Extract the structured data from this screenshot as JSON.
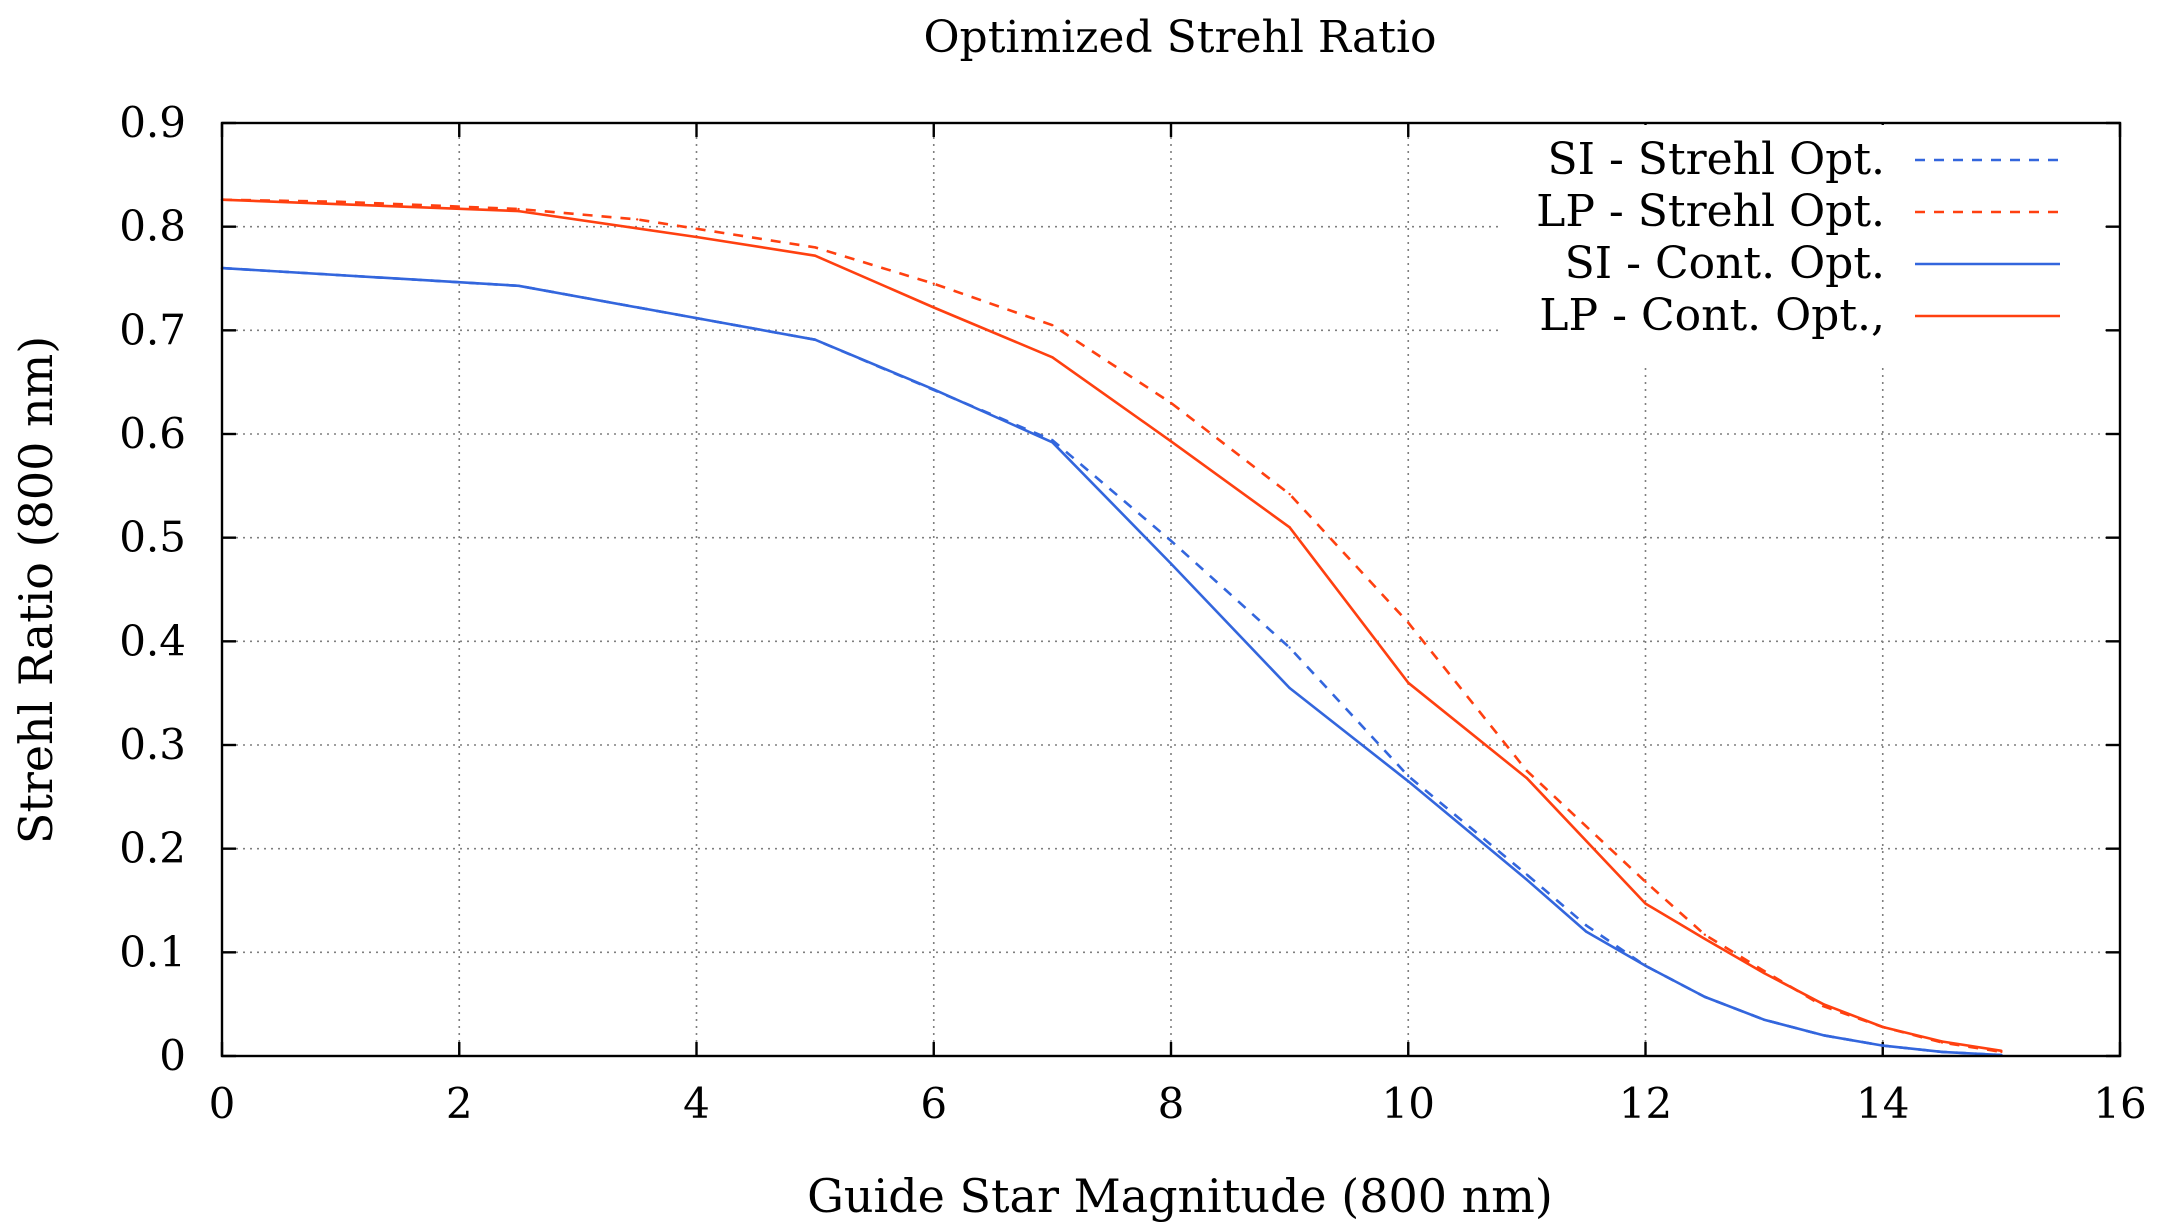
{
  "chart_data": {
    "type": "line",
    "title": "Optimized Strehl Ratio",
    "xlabel": "Guide Star Magnitude (800 nm)",
    "ylabel": "Strehl Ratio (800 nm)",
    "xlim": [
      0,
      16
    ],
    "ylim": [
      0,
      0.9
    ],
    "xticks": [
      "0",
      "2",
      "4",
      "6",
      "8",
      "10",
      "12",
      "14",
      "16"
    ],
    "yticks": [
      "0",
      "0.1",
      "0.2",
      "0.3",
      "0.4",
      "0.5",
      "0.6",
      "0.7",
      "0.8",
      "0.9"
    ],
    "grid": true,
    "legend_position": "top-right",
    "series": [
      {
        "name": "SI - Strehl Opt.",
        "color": "#3366dd",
        "style": "dashed",
        "x": [
          0,
          2.5,
          5,
          7,
          8,
          9,
          10,
          11,
          11.5,
          12,
          12.5,
          13,
          13.5,
          14,
          14.5,
          15
        ],
        "y": [
          0.76,
          0.743,
          0.691,
          0.594,
          0.497,
          0.394,
          0.27,
          0.175,
          0.126,
          0.087,
          0.057,
          0.035,
          0.02,
          0.01,
          0.004,
          0.001
        ]
      },
      {
        "name": "LP - Strehl Opt.",
        "color": "#ff4010",
        "style": "dashed",
        "x": [
          0,
          1,
          2.5,
          3.5,
          5,
          6,
          7,
          8,
          9,
          10,
          11,
          12,
          12.5,
          13,
          13.5,
          14,
          14.5,
          15
        ],
        "y": [
          0.826,
          0.824,
          0.817,
          0.807,
          0.78,
          0.745,
          0.705,
          0.63,
          0.542,
          0.418,
          0.275,
          0.168,
          0.117,
          0.082,
          0.048,
          0.028,
          0.013,
          0.004
        ]
      },
      {
        "name": "SI - Cont. Opt.",
        "color": "#3366dd",
        "style": "solid",
        "x": [
          0,
          2.5,
          5,
          6,
          7,
          8,
          9,
          10,
          11,
          11.5,
          12,
          12.5,
          13,
          13.5,
          14,
          14.5,
          15
        ],
        "y": [
          0.76,
          0.743,
          0.691,
          0.643,
          0.592,
          0.475,
          0.355,
          0.265,
          0.17,
          0.12,
          0.087,
          0.057,
          0.035,
          0.02,
          0.01,
          0.004,
          0.001
        ]
      },
      {
        "name": "LP - Cont. Opt.,",
        "color": "#ff4010",
        "style": "solid",
        "x": [
          0,
          2.5,
          4,
          5,
          6,
          7,
          8,
          9,
          10,
          11,
          12,
          12.5,
          13,
          13.5,
          14,
          14.5,
          15
        ],
        "y": [
          0.826,
          0.815,
          0.79,
          0.772,
          0.722,
          0.674,
          0.593,
          0.51,
          0.36,
          0.268,
          0.147,
          0.113,
          0.08,
          0.05,
          0.028,
          0.014,
          0.005
        ]
      }
    ]
  }
}
